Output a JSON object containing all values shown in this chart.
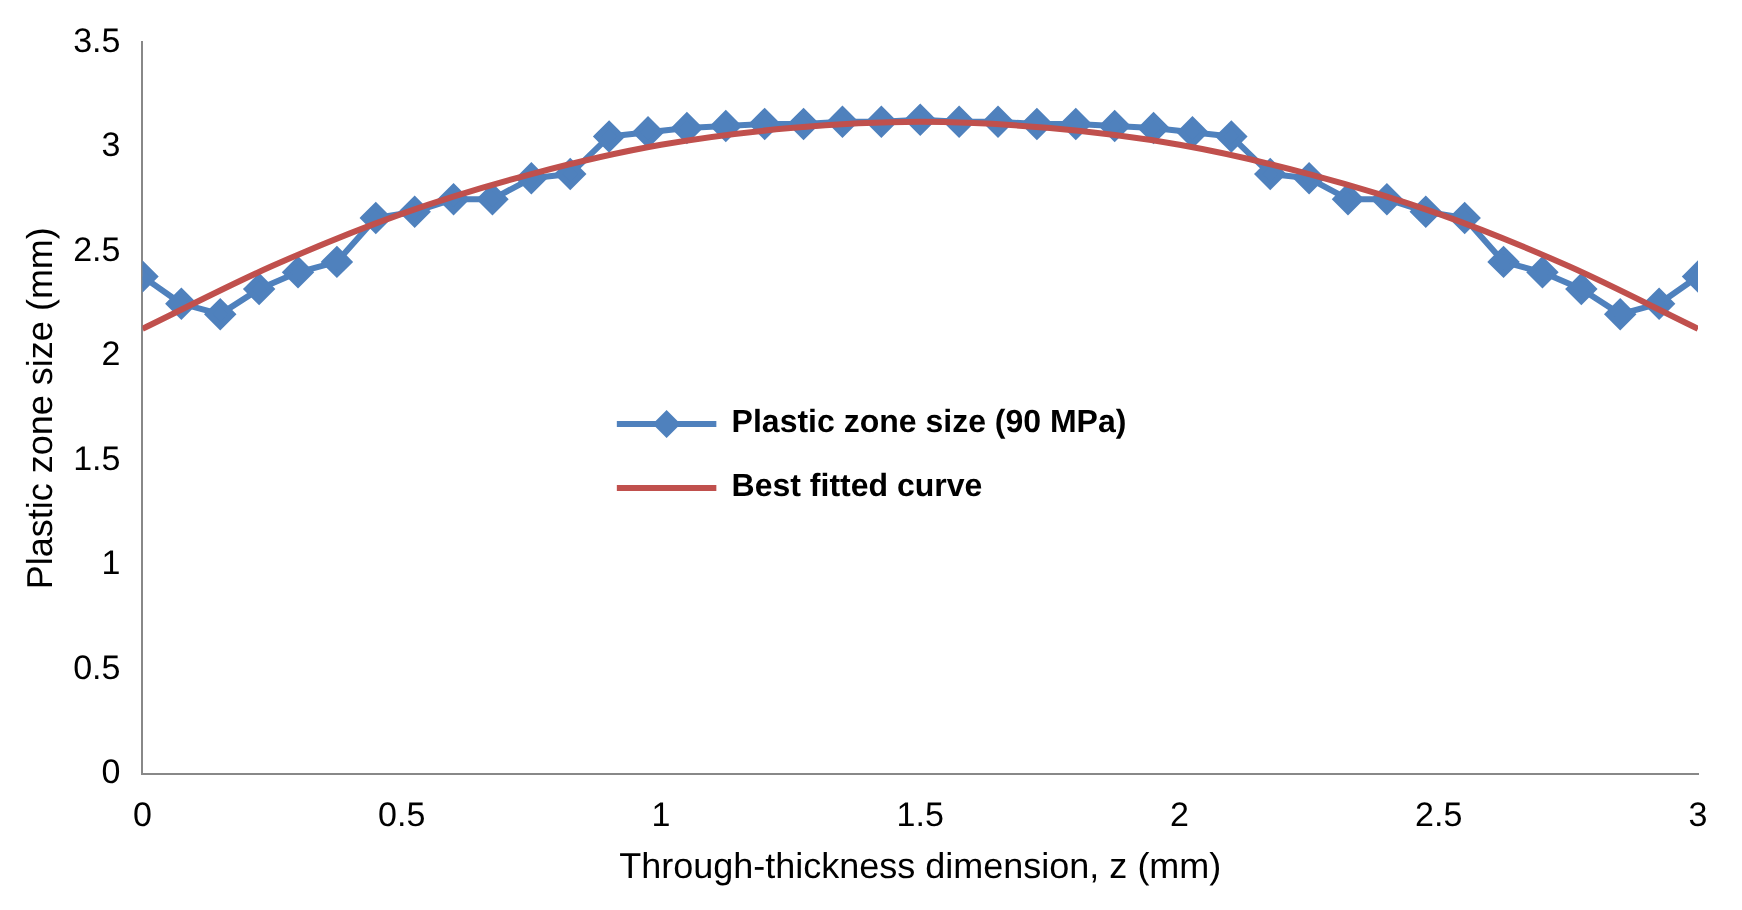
{
  "chart_data": {
    "type": "line",
    "xlabel": "Through-thickness dimension, z (mm)",
    "ylabel": "Plastic zone size (mm)",
    "xlim": [
      0,
      3
    ],
    "xticks": [
      0,
      0.5,
      1,
      1.5,
      2,
      2.5,
      3
    ],
    "ylim": [
      0,
      3.5
    ],
    "yticks": [
      0,
      0.5,
      1,
      1.5,
      2,
      2.5,
      3,
      3.5
    ],
    "grid": false,
    "legend": "center",
    "series": [
      {
        "name": "Plastic zone size (90 MPa)",
        "color": "#4f81bd",
        "marker": "diamond",
        "x": [
          0,
          0.075,
          0.15,
          0.225,
          0.3,
          0.375,
          0.45,
          0.525,
          0.6,
          0.675,
          0.75,
          0.825,
          0.9,
          0.975,
          1.05,
          1.125,
          1.2,
          1.275,
          1.35,
          1.425,
          1.5,
          1.575,
          1.65,
          1.725,
          1.8,
          1.875,
          1.95,
          2.025,
          2.1,
          2.175,
          2.25,
          2.325,
          2.4,
          2.475,
          2.55,
          2.625,
          2.7,
          2.775,
          2.85,
          2.925,
          3
        ],
        "values": [
          2.38,
          2.25,
          2.2,
          2.32,
          2.4,
          2.45,
          2.66,
          2.69,
          2.75,
          2.75,
          2.85,
          2.87,
          3.05,
          3.07,
          3.09,
          3.1,
          3.11,
          3.11,
          3.12,
          3.12,
          3.13,
          3.12,
          3.12,
          3.11,
          3.11,
          3.1,
          3.09,
          3.07,
          3.05,
          2.87,
          2.85,
          2.75,
          2.75,
          2.69,
          2.66,
          2.45,
          2.4,
          2.32,
          2.2,
          2.25,
          2.38
        ]
      },
      {
        "name": "Best fitted curve",
        "color": "#c0504d",
        "marker": "none",
        "x": [
          0,
          0.25,
          0.5,
          0.75,
          1,
          1.25,
          1.5,
          1.75,
          2,
          2.25,
          2.5,
          2.75,
          3
        ],
        "values": [
          2.13,
          2.43,
          2.68,
          2.87,
          3.01,
          3.09,
          3.12,
          3.09,
          3.01,
          2.87,
          2.68,
          2.43,
          2.13
        ]
      }
    ]
  }
}
